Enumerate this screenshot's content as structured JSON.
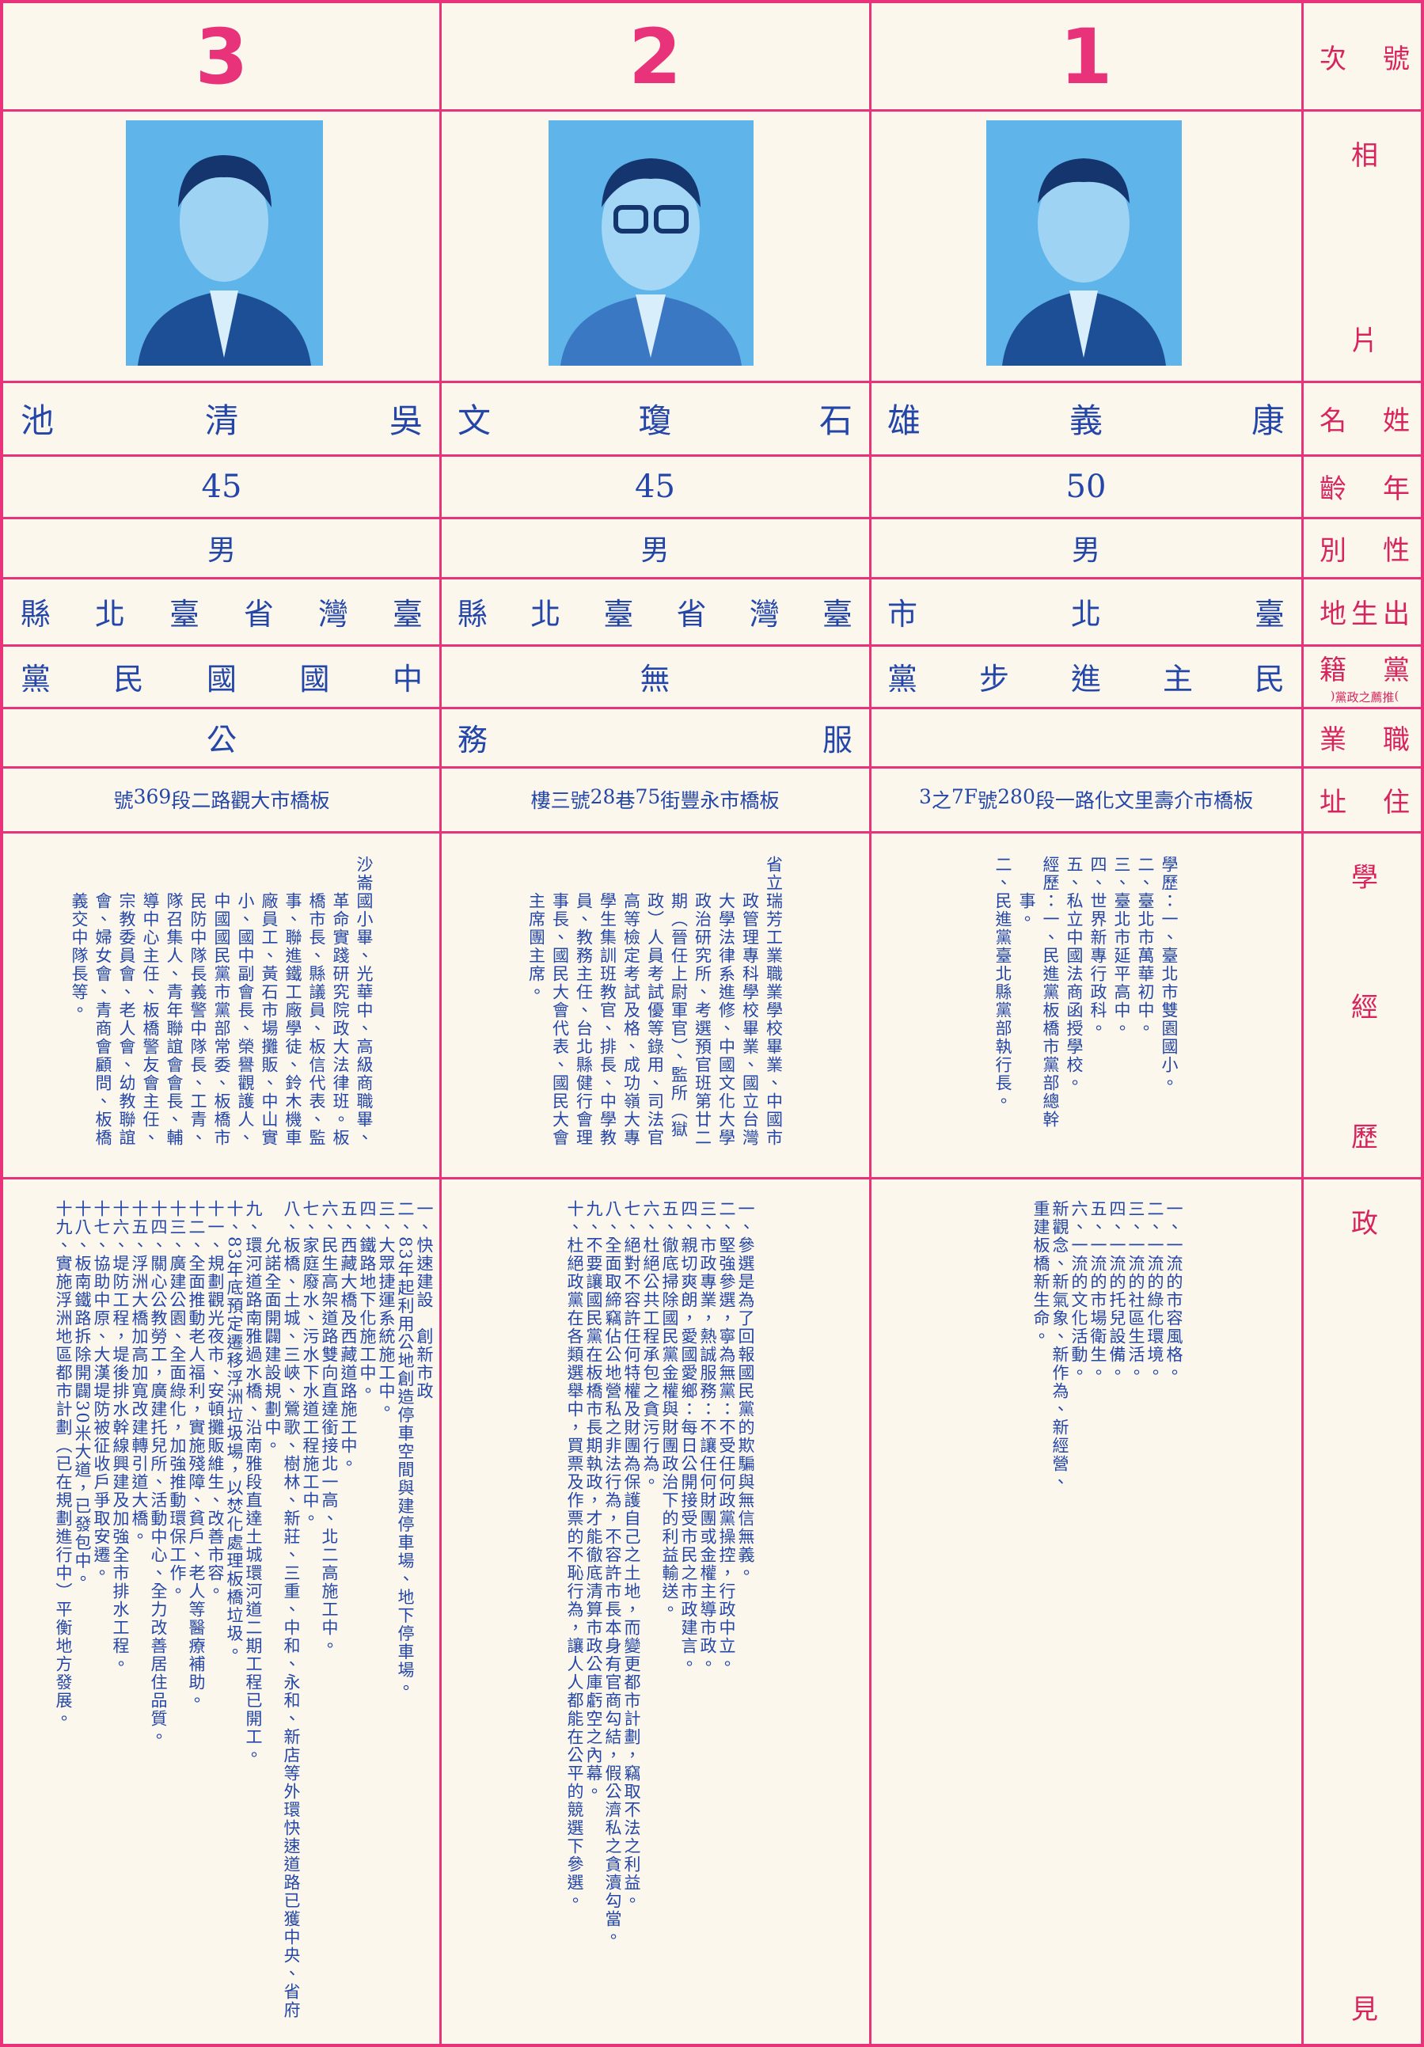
{
  "header_labels": {
    "number": "號次",
    "photo": "相片",
    "name": "姓名",
    "age": "年齡",
    "sex": "性別",
    "birthplace": "出生地",
    "party": "黨籍",
    "party_note": "(推薦之政黨)",
    "occupation": "職業",
    "address": "住址",
    "experience": "學經歷",
    "platform": "政見"
  },
  "candidates": [
    {
      "number": 1,
      "name": "康義雄",
      "age": 50,
      "sex": "男",
      "birthplace": "臺北市",
      "party": "民主進步黨",
      "address": "板橋市介壽里文化路一段280號7F之3",
      "experience": [
        "學歷：一、臺北市雙園國小。",
        "二、臺北市萬華初中。",
        "三、臺北市延平高中。",
        "四、世界新專行政科。",
        "五、私立中國法商函授學校。",
        "經歷：一、民進黨板橋市黨部總幹事。",
        "二、民進黨臺北縣黨部執行長。"
      ],
      "platform": [
        "一、一流的市容風格。",
        "二、一流的綠化環境。",
        "三、一流的社區生活。",
        "四、一流的托兒設備。",
        "五、一流的市場衛生。",
        "六、一流的文化活動。",
        "新觀念、新氣象、新作為、新經營、",
        "重建板橋新生命。"
      ]
    },
    {
      "number": 2,
      "name": "石瓊文",
      "age": 45,
      "sex": "男",
      "birthplace": "臺灣省臺北縣",
      "party": "無",
      "occupation": "服務",
      "address": "板橋市永豐街75巷28號三樓",
      "experience": [
        "省立瑞芳工業職業學校畢業、中國市政管理專科學校畢業、國立台灣大學法律系進修、中國文化大學政治研究所、考選預官班第廿二期（晉任上尉軍官）、監所（獄政）人員考試優等錄用、司法官高等檢定考試及格、成功嶺大專學生集訓班教官、排長、中學教員、教務主任、台北縣健行會理事長、國民大會代表、國民大會主席團主席。"
      ],
      "platform": [
        "一、參選是為了回報國民黨的欺騙與無信無義。",
        "二、堅強參選，寧為無黨：不受任何政黨操控，行政中立。",
        "三、市政專業，熱誠服務：不讓任何財團或金權主導市政。",
        "四、親切爽朗，愛國愛鄉：每日公開接受市民之市政建言。",
        "五、徹底掃除國民黨金權與財團政治下的利益輸送。",
        "六、杜絕公共工程承包之貪污行為。",
        "七、絕對不容許任何特權及財團為保護自己之土地，而變更都市計劃，竊取不法之利益。",
        "八、全面取締竊佔公地營私之非法行為，不容許市長本身有官商勾結，假公濟私之貪瀆勾當。",
        "九、不要讓國民黨在板橋市長期執政，才能徹底清算市政公庫虧空之內幕。",
        "十、杜絕政黨在各類選舉中，買票及作票的不恥行為，讓人人都能在公平的競選下參選。"
      ]
    },
    {
      "number": 3,
      "name": "吳清池",
      "age": 45,
      "sex": "男",
      "birthplace": "臺灣省臺北縣",
      "party": "中國國民黨",
      "occupation": "公",
      "address": "板橋市大觀路二段369號",
      "experience": [
        "沙崙國小畢、光華中、高級商職畢、革命實踐研究院政大法律班。板橋市長、縣議員、板信代表、監事、聯進鐵工廠學徒、鈴木機車廠員工、黃石市場攤販、中山實小、國中副會長、榮譽觀護人、中國國民黨市黨部常委、板橋市民防中隊長義警中隊長、工青、隊召集人、青年聯誼會會長、輔導中心主任、板橋警友會主任、宗教委員會、老人會、幼教聯誼會、婦女會、青商會顧問、板橋義交中隊長等。"
      ],
      "platform": [
        "一、快速建設　創新市政",
        "二、83年起利用公地創造停車空間與建停車場、地下停車場。",
        "三、大眾捷運系統施工中。",
        "四、鐵路地下化施工中。",
        "五、西藏大橋及西藏道路施工中。",
        "六、民生高架道路雙向直達銜接北一高、北二高施工中。",
        "七、家庭廢水、污水下水道工程施工中。",
        "八、板橋、土城、三峽、鶯歌、樹林、新莊、三重、中和、永和、新店等外環快速道路已獲中央、省府允諾全面開闢建設規劃中。",
        "九、環河道路南雅過水橋、沿南雅段直達土城環河道二期工程已開工。",
        "十、83年底預定遷移浮洲垃圾場，以焚化處理板橋垃圾。",
        "十一、規劃觀光夜市、安頓攤販維生、改善市容。",
        "十二、全面推動老人福利，實施殘障、貧戶、老人等醫療補助。",
        "十三、廣建公園、全面綠化，加強推動環保工作。",
        "十四、關心公教勞工，廣建托兒所、活動中心、全力改善居住品質。",
        "十五、浮洲大橋加高加寬改建轉引道大橋。",
        "十六、堤防工程，堤後排水幹線興建及加強全市排水工程。",
        "十七、協助中原、大漢堤防被征收戶爭取安遷。",
        "十八、板南鐵路拆除開闢30米大道，已發包中。",
        "十九、實施浮洲地區都市計劃（已在規劃進行中）平衡地方發展。"
      ]
    }
  ]
}
